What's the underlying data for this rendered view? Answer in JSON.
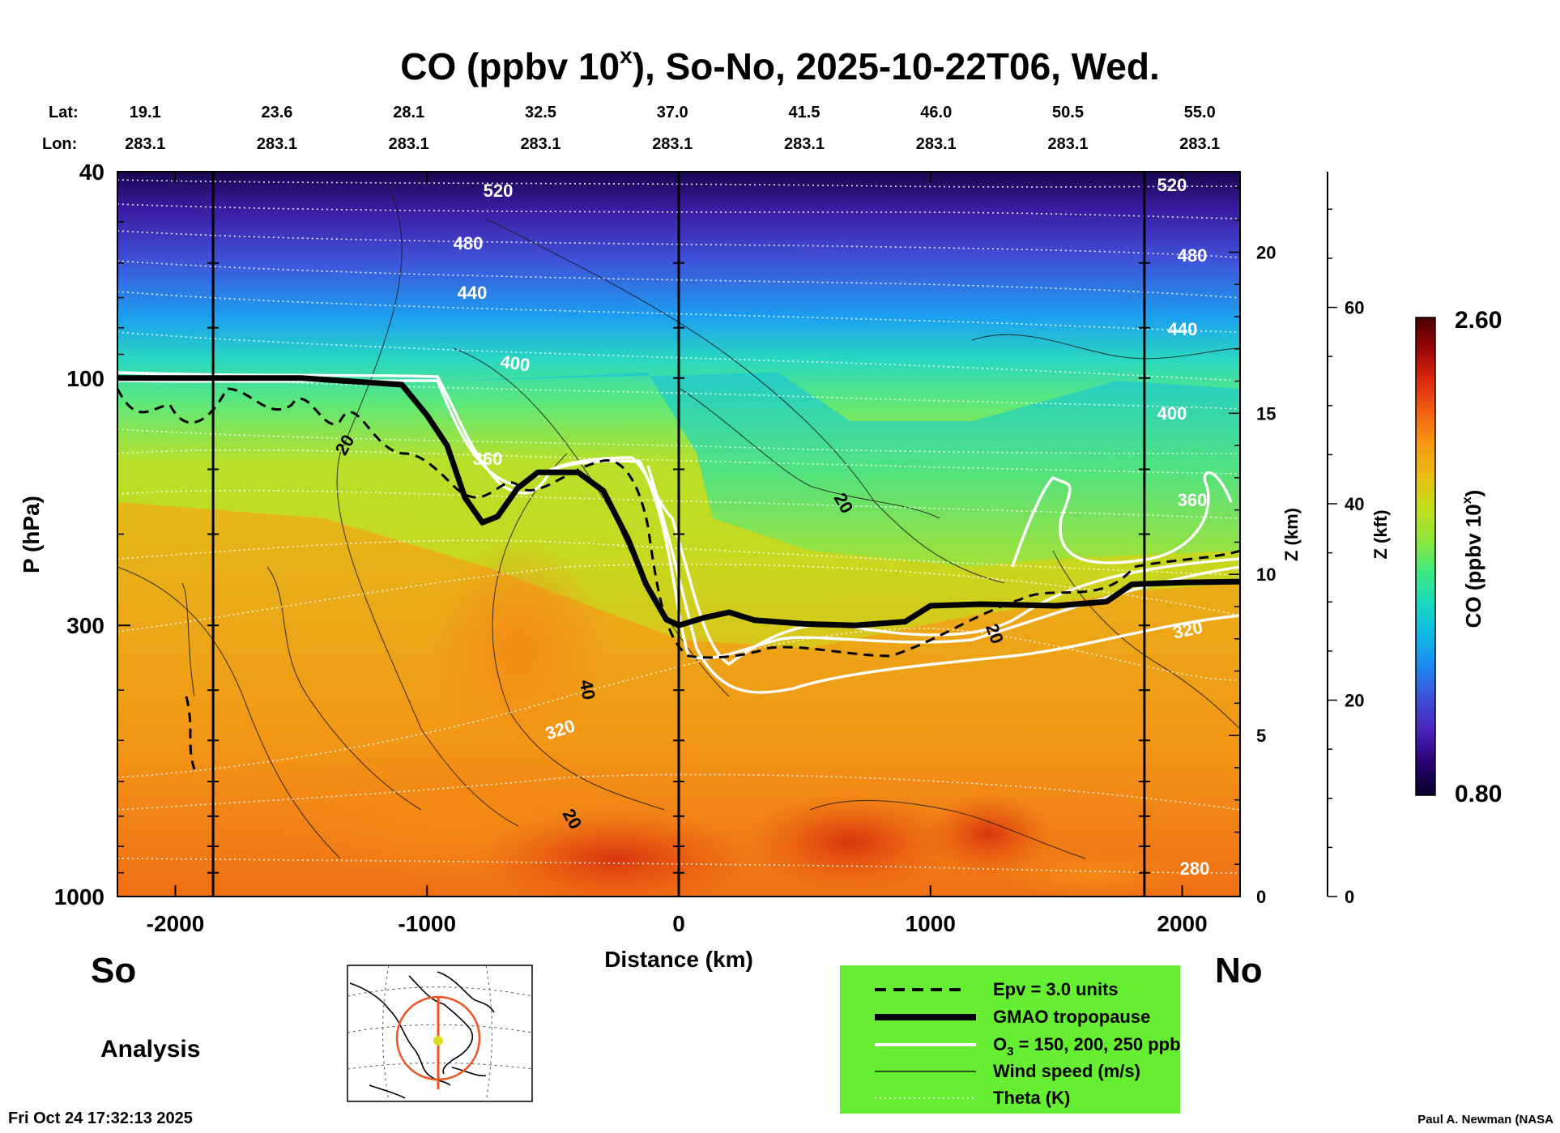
{
  "chart_data": {
    "type": "heatmap",
    "title_main": "CO (ppbv 10",
    "title_exp": "x",
    "title_rest": "), So-No, 2025-10-22T06, Wed.",
    "xlabel": "Distance (km)",
    "ylabel": "P (hPa)",
    "zkm_label": "Z (km)",
    "zkft_label": "Z (kft)",
    "colorbar_label_main": "CO (ppbv 10",
    "colorbar_label_exp": "x",
    "colorbar_label_rest": ")",
    "colorbar_max": "2.60",
    "colorbar_min": "0.80",
    "xlim": [
      -2230,
      2230
    ],
    "ylim_hpa": [
      1000,
      40
    ],
    "x_ticks": [
      -2000,
      -1000,
      0,
      1000,
      2000
    ],
    "x_tick_labels": [
      "-2000",
      "-1000",
      "0",
      "1000",
      "2000"
    ],
    "p_ticks": [
      40,
      100,
      300,
      1000
    ],
    "p_tick_labels": [
      "40",
      "100",
      "300",
      "1000"
    ],
    "zkm_ticks": [
      0,
      5,
      10,
      15,
      20
    ],
    "zkm_tick_labels": [
      "0",
      "5",
      "10",
      "15",
      "20"
    ],
    "zkft_ticks": [
      0,
      20,
      40,
      60
    ],
    "zkft_tick_labels": [
      "0",
      "20",
      "40",
      "60"
    ],
    "lat_label": "Lat:",
    "lon_label": "Lon:",
    "lat_values": [
      "19.1",
      "23.6",
      "28.1",
      "32.5",
      "37.0",
      "41.5",
      "46.0",
      "50.5",
      "55.0"
    ],
    "lon_values": [
      "283.1",
      "283.1",
      "283.1",
      "283.1",
      "283.1",
      "283.1",
      "283.1",
      "283.1",
      "283.1"
    ],
    "vertical_lines_km": [
      -1850,
      0,
      1850
    ],
    "tropopause_km_hpa": [
      [
        -2230,
        100
      ],
      [
        -2000,
        100
      ],
      [
        -1500,
        100
      ],
      [
        -1100,
        103
      ],
      [
        -1000,
        118
      ],
      [
        -920,
        135
      ],
      [
        -850,
        170
      ],
      [
        -780,
        190
      ],
      [
        -720,
        185
      ],
      [
        -640,
        163
      ],
      [
        -560,
        152
      ],
      [
        -400,
        152
      ],
      [
        -300,
        165
      ],
      [
        -200,
        205
      ],
      [
        -130,
        250
      ],
      [
        -50,
        292
      ],
      [
        0,
        300
      ],
      [
        100,
        290
      ],
      [
        200,
        283
      ],
      [
        300,
        293
      ],
      [
        500,
        298
      ],
      [
        700,
        300
      ],
      [
        900,
        295
      ],
      [
        1000,
        275
      ],
      [
        1200,
        273
      ],
      [
        1500,
        275
      ],
      [
        1700,
        270
      ],
      [
        1800,
        250
      ],
      [
        2000,
        248
      ],
      [
        2230,
        247
      ]
    ],
    "theta_labels": [
      "520",
      "480",
      "440",
      "400",
      "360",
      "320",
      "320",
      "280",
      "520",
      "480",
      "440",
      "400",
      "360",
      "320"
    ],
    "wind_labels": [
      "20",
      "20",
      "40",
      "20",
      "20"
    ],
    "legend": {
      "epv": "Epv = 3.0 units",
      "tropopause": "GMAO tropopause",
      "o3_prefix": "O",
      "o3_sub": "3",
      "o3_suffix": " = 150, 200, 250 ppb",
      "wind": "Wind speed (m/s)",
      "theta": "Theta (K)"
    },
    "colors": {
      "legend_bg": "#66ee33",
      "colorbar_stops": [
        "#050028",
        "#2a0070",
        "#4a22b8",
        "#3f4ed8",
        "#1f86f0",
        "#10b6e8",
        "#18d8c0",
        "#3ee880",
        "#8ce53a",
        "#c2de1c",
        "#e9bc14",
        "#f79a12",
        "#f26214",
        "#dc2a10",
        "#9a0808",
        "#4a0000"
      ]
    }
  },
  "labels": {
    "south": "So",
    "north": "No",
    "analysis": "Analysis",
    "timestamp": "Fri Oct 24 17:32:13 2025",
    "credit": "Paul A. Newman (NASA"
  }
}
